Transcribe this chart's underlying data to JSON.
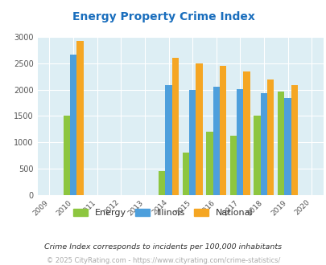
{
  "title": "Energy Property Crime Index",
  "years": [
    2009,
    2010,
    2011,
    2012,
    2013,
    2014,
    2015,
    2016,
    2017,
    2018,
    2019,
    2020
  ],
  "data_years": [
    2010,
    2014,
    2015,
    2016,
    2017,
    2018,
    2019
  ],
  "energy": [
    1500,
    450,
    800,
    1200,
    1130,
    1500,
    1960
  ],
  "illinois": [
    2670,
    2090,
    2000,
    2050,
    2010,
    1940,
    1840
  ],
  "national": [
    2920,
    2610,
    2500,
    2460,
    2350,
    2190,
    2090
  ],
  "color_energy": "#8dc63f",
  "color_illinois": "#4d9fdc",
  "color_national": "#f5a623",
  "ylim": [
    0,
    3000
  ],
  "yticks": [
    0,
    500,
    1000,
    1500,
    2000,
    2500,
    3000
  ],
  "background_color": "#ddeef4",
  "title_color": "#1a6ebd",
  "title_fontsize": 10,
  "footnote1": "Crime Index corresponds to incidents per 100,000 inhabitants",
  "footnote2": "© 2025 CityRating.com - https://www.cityrating.com/crime-statistics/",
  "legend_labels": [
    "Energy",
    "Illinois",
    "National"
  ]
}
